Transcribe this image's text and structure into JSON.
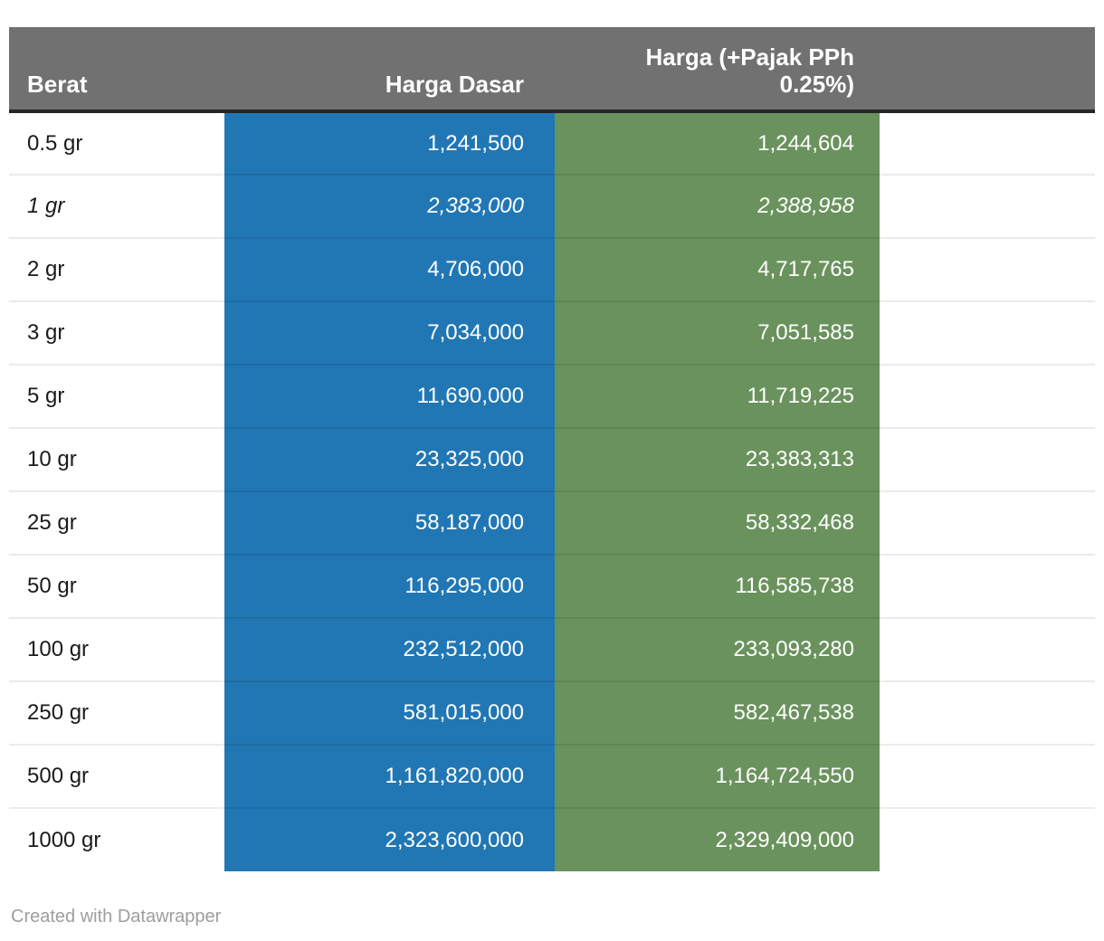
{
  "colors": {
    "header_bg": "#717171",
    "header_border": "#262626",
    "col_harga_dasar": "#2177b4",
    "col_harga_pajak": "#6a925d",
    "row_label_text": "#1a1a1a",
    "value_text": "#ffffff",
    "footer_text": "#9e9e9e"
  },
  "table": {
    "headers": {
      "berat": "Berat",
      "harga_dasar": "Harga Dasar",
      "harga_pajak": "Harga (+Pajak PPh 0.25%)"
    },
    "rows": [
      {
        "berat": "0.5 gr",
        "harga_dasar": "1,241,500",
        "harga_pajak": "1,244,604"
      },
      {
        "berat": "1 gr",
        "harga_dasar": "2,383,000",
        "harga_pajak": "2,388,958"
      },
      {
        "berat": "2 gr",
        "harga_dasar": "4,706,000",
        "harga_pajak": "4,717,765"
      },
      {
        "berat": "3 gr",
        "harga_dasar": "7,034,000",
        "harga_pajak": "7,051,585"
      },
      {
        "berat": "5 gr",
        "harga_dasar": "11,690,000",
        "harga_pajak": "11,719,225"
      },
      {
        "berat": "10 gr",
        "harga_dasar": "23,325,000",
        "harga_pajak": "23,383,313"
      },
      {
        "berat": "25 gr",
        "harga_dasar": "58,187,000",
        "harga_pajak": "58,332,468"
      },
      {
        "berat": "50 gr",
        "harga_dasar": "116,295,000",
        "harga_pajak": "116,585,738"
      },
      {
        "berat": "100 gr",
        "harga_dasar": "232,512,000",
        "harga_pajak": "233,093,280"
      },
      {
        "berat": "250 gr",
        "harga_dasar": "581,015,000",
        "harga_pajak": "582,467,538"
      },
      {
        "berat": "500 gr",
        "harga_dasar": "1,161,820,000",
        "harga_pajak": "1,164,724,550"
      },
      {
        "berat": "1000 gr",
        "harga_dasar": "2,323,600,000",
        "harga_pajak": "2,329,409,000"
      }
    ],
    "emphasized_row": "1 gr"
  },
  "footer": {
    "credit": "Created with Datawrapper"
  },
  "chart_data": {
    "type": "table",
    "columns": [
      "Berat",
      "Harga Dasar",
      "Harga (+Pajak PPh 0.25%)"
    ],
    "rows": [
      [
        "0.5 gr",
        1241500,
        1244604
      ],
      [
        "1 gr",
        2383000,
        2388958
      ],
      [
        "2 gr",
        4706000,
        4717765
      ],
      [
        "3 gr",
        7034000,
        7051585
      ],
      [
        "5 gr",
        11690000,
        11719225
      ],
      [
        "10 gr",
        23325000,
        23383313
      ],
      [
        "25 gr",
        58187000,
        58332468
      ],
      [
        "50 gr",
        116295000,
        116585738
      ],
      [
        "100 gr",
        232512000,
        233093280
      ],
      [
        "250 gr",
        581015000,
        582467538
      ],
      [
        "500 gr",
        1161820000,
        1164724550
      ],
      [
        "1000 gr",
        2323600000,
        2329409000
      ]
    ],
    "title": "",
    "legend_position": "none",
    "notes": "Column 'Harga Dasar' shaded blue, column 'Harga (+Pajak PPh 0.25%)' shaded green; row '1 gr' shown in italics"
  }
}
